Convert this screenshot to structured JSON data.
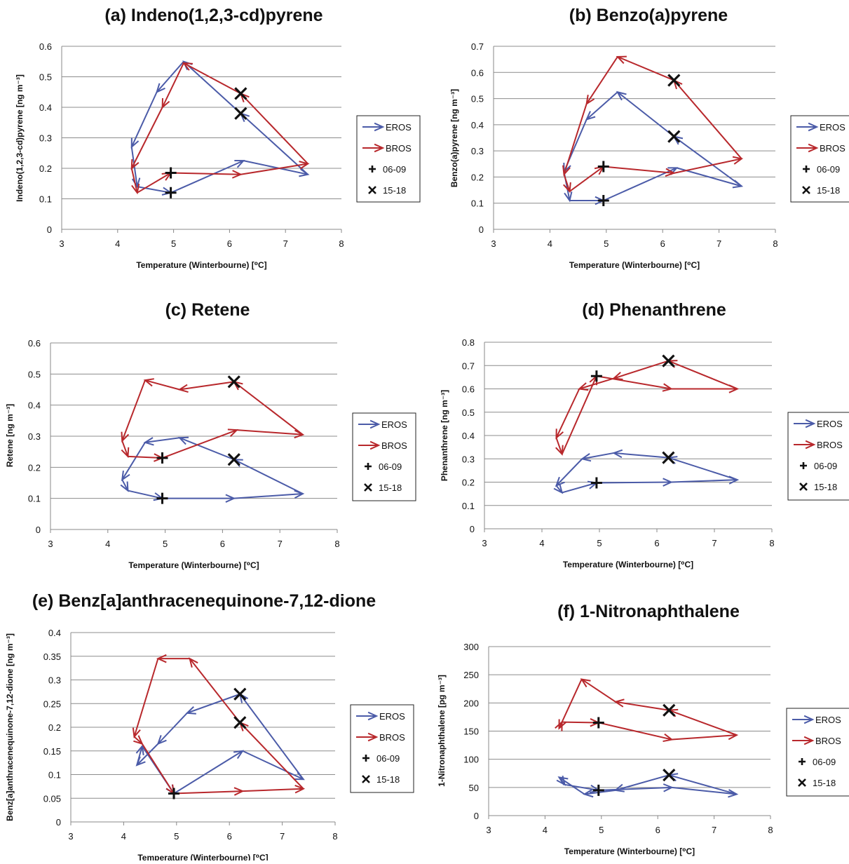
{
  "chart_data": [
    {
      "id": "a",
      "type": "line",
      "title": "(a) Indeno(1,2,3-cd)pyrene",
      "xlabel": "Temperature (Winterbourne) [⁰C]",
      "ylabel": "Indeno(1,2,3-cd)pyrene [ng m⁻³]",
      "xlim": [
        3,
        8
      ],
      "ylim": [
        0,
        0.6
      ],
      "xticks": [
        "3",
        "4",
        "5",
        "6",
        "7",
        "8"
      ],
      "yticks": [
        "0",
        "0.1",
        "0.2",
        "0.3",
        "0.4",
        "0.5",
        "0.6"
      ],
      "series": [
        {
          "name": "EROS",
          "x": [
            4.95,
            6.25,
            7.4,
            6.2,
            5.18,
            4.7,
            4.25,
            4.35,
            4.95
          ],
          "y": [
            0.12,
            0.225,
            0.18,
            0.38,
            0.55,
            0.45,
            0.27,
            0.14,
            0.12
          ]
        },
        {
          "name": "BROS",
          "x": [
            4.95,
            6.2,
            7.4,
            6.2,
            5.18,
            4.8,
            4.25,
            4.35,
            4.95
          ],
          "y": [
            0.185,
            0.18,
            0.215,
            0.445,
            0.545,
            0.4,
            0.2,
            0.12,
            0.185
          ]
        }
      ],
      "markers": [
        {
          "name": "06-09",
          "x": [
            4.95,
            4.95
          ],
          "y": [
            0.12,
            0.185
          ]
        },
        {
          "name": "15-18",
          "x": [
            6.2,
            6.2
          ],
          "y": [
            0.38,
            0.445
          ]
        }
      ],
      "legend": [
        "EROS",
        "BROS",
        "06-09",
        "15-18"
      ]
    },
    {
      "id": "b",
      "type": "line",
      "title": "(b) Benzo(a)pyrene",
      "xlabel": "Temperature (Winterbourne) [⁰C]",
      "ylabel": "Benzo(a)pyrene [ng m⁻³]",
      "xlim": [
        3,
        8
      ],
      "ylim": [
        0,
        0.7
      ],
      "xticks": [
        "3",
        "4",
        "5",
        "6",
        "7",
        "8"
      ],
      "yticks": [
        "0",
        "0.1",
        "0.2",
        "0.3",
        "0.4",
        "0.5",
        "0.6",
        "0.7"
      ],
      "series": [
        {
          "name": "EROS",
          "x": [
            4.95,
            6.25,
            7.4,
            6.2,
            5.2,
            4.65,
            4.25,
            4.35,
            4.95
          ],
          "y": [
            0.11,
            0.235,
            0.165,
            0.355,
            0.525,
            0.42,
            0.22,
            0.11,
            0.11
          ]
        },
        {
          "name": "BROS",
          "x": [
            4.95,
            6.2,
            7.4,
            6.2,
            5.2,
            4.65,
            4.25,
            4.35,
            4.95
          ],
          "y": [
            0.24,
            0.215,
            0.27,
            0.57,
            0.66,
            0.48,
            0.21,
            0.145,
            0.24
          ]
        }
      ],
      "markers": [
        {
          "name": "06-09",
          "x": [
            4.95,
            4.95
          ],
          "y": [
            0.11,
            0.24
          ]
        },
        {
          "name": "15-18",
          "x": [
            6.2,
            6.2
          ],
          "y": [
            0.355,
            0.57
          ]
        }
      ],
      "legend": [
        "EROS",
        "BROS",
        "06-09",
        "15-18"
      ]
    },
    {
      "id": "c",
      "type": "line",
      "title": "(c) Retene",
      "xlabel": "Temperature (Winterbourne) [⁰C]",
      "ylabel": "Retene [ng m⁻³]",
      "xlim": [
        3,
        8
      ],
      "ylim": [
        0,
        0.6
      ],
      "xticks": [
        "3",
        "4",
        "5",
        "6",
        "7",
        "8"
      ],
      "yticks": [
        "0",
        "0.1",
        "0.2",
        "0.3",
        "0.4",
        "0.5",
        "0.6"
      ],
      "series": [
        {
          "name": "EROS",
          "x": [
            4.95,
            6.2,
            7.4,
            6.2,
            5.25,
            4.65,
            4.25,
            4.35,
            4.95
          ],
          "y": [
            0.1,
            0.1,
            0.115,
            0.225,
            0.295,
            0.28,
            0.16,
            0.125,
            0.1
          ]
        },
        {
          "name": "BROS",
          "x": [
            4.95,
            6.25,
            7.4,
            6.2,
            5.25,
            4.65,
            4.25,
            4.35,
            4.95
          ],
          "y": [
            0.23,
            0.32,
            0.305,
            0.475,
            0.45,
            0.48,
            0.285,
            0.235,
            0.23
          ]
        }
      ],
      "markers": [
        {
          "name": "06-09",
          "x": [
            4.95,
            4.95
          ],
          "y": [
            0.1,
            0.23
          ]
        },
        {
          "name": "15-18",
          "x": [
            6.2,
            6.2
          ],
          "y": [
            0.225,
            0.475
          ]
        }
      ],
      "legend": [
        "EROS",
        "BROS",
        "06-09",
        "15-18"
      ]
    },
    {
      "id": "d",
      "type": "line",
      "title": "(d) Phenanthrene",
      "xlabel": "Temperature (Winterbourne) [⁰C]",
      "ylabel": "Phenanthrene [ng m⁻³]",
      "xlim": [
        3,
        8
      ],
      "ylim": [
        0,
        0.8
      ],
      "xticks": [
        "3",
        "4",
        "5",
        "6",
        "7",
        "8"
      ],
      "yticks": [
        "0",
        "0.1",
        "0.2",
        "0.3",
        "0.4",
        "0.5",
        "0.6",
        "0.7",
        "0.8"
      ],
      "series": [
        {
          "name": "EROS",
          "x": [
            4.95,
            6.25,
            7.4,
            6.2,
            5.25,
            4.7,
            4.25,
            4.35,
            4.95
          ],
          "y": [
            0.197,
            0.2,
            0.21,
            0.305,
            0.325,
            0.3,
            0.185,
            0.155,
            0.197
          ]
        },
        {
          "name": "BROS",
          "x": [
            4.95,
            6.25,
            7.4,
            6.2,
            5.25,
            4.65,
            4.25,
            4.35,
            4.95
          ],
          "y": [
            0.655,
            0.6,
            0.6,
            0.72,
            0.645,
            0.6,
            0.39,
            0.32,
            0.655
          ]
        }
      ],
      "markers": [
        {
          "name": "06-09",
          "x": [
            4.95,
            4.95
          ],
          "y": [
            0.197,
            0.655
          ]
        },
        {
          "name": "15-18",
          "x": [
            6.2,
            6.2
          ],
          "y": [
            0.305,
            0.72
          ]
        }
      ],
      "legend": [
        "EROS",
        "BROS",
        "06-09",
        "15-18"
      ]
    },
    {
      "id": "e",
      "type": "line",
      "title": "(e) Benz[a]anthracenequinone-7,12-dione",
      "xlabel": "Temperature (Winterbourne) [⁰C]",
      "ylabel": "Benz[a]anthracenequinone-7,12-dione [ng m⁻³]",
      "xlim": [
        3,
        8
      ],
      "ylim": [
        0,
        0.4
      ],
      "xticks": [
        "3",
        "4",
        "5",
        "6",
        "7",
        "8"
      ],
      "yticks": [
        "0",
        "0.05",
        "0.1",
        "0.15",
        "0.2",
        "0.25",
        "0.3",
        "0.35",
        "0.4"
      ],
      "series": [
        {
          "name": "EROS",
          "x": [
            4.95,
            6.25,
            7.4,
            6.2,
            5.2,
            4.65,
            4.25,
            4.35,
            4.95
          ],
          "y": [
            0.06,
            0.15,
            0.09,
            0.27,
            0.23,
            0.165,
            0.12,
            0.16,
            0.06
          ]
        },
        {
          "name": "BROS",
          "x": [
            4.95,
            6.25,
            7.4,
            6.2,
            5.25,
            4.65,
            4.2,
            4.35,
            4.95
          ],
          "y": [
            0.06,
            0.065,
            0.07,
            0.21,
            0.345,
            0.345,
            0.18,
            0.165,
            0.06
          ]
        }
      ],
      "markers": [
        {
          "name": "06-09",
          "x": [
            4.95,
            4.95
          ],
          "y": [
            0.06,
            0.06
          ]
        },
        {
          "name": "15-18",
          "x": [
            6.2,
            6.2
          ],
          "y": [
            0.27,
            0.21
          ]
        }
      ],
      "legend": [
        "EROS",
        "BROS",
        "06-09",
        "15-18"
      ]
    },
    {
      "id": "f",
      "type": "line",
      "title": "(f) 1-Nitronaphthalene",
      "xlabel": "Temperature (Winterbourne) [⁰C]",
      "ylabel": "1-Nitronaphthalene  [pg m⁻³]",
      "xlim": [
        3,
        8
      ],
      "ylim": [
        0,
        300
      ],
      "xticks": [
        "3",
        "4",
        "5",
        "6",
        "7",
        "8"
      ],
      "yticks": [
        "0",
        "50",
        "100",
        "150",
        "200",
        "250",
        "300"
      ],
      "series": [
        {
          "name": "EROS",
          "x": [
            4.95,
            6.25,
            7.4,
            6.2,
            5.25,
            4.7,
            4.25,
            4.35,
            4.95
          ],
          "y": [
            45,
            50,
            38,
            72,
            45,
            38,
            68,
            55,
            45
          ]
        },
        {
          "name": "BROS",
          "x": [
            4.95,
            6.25,
            7.4,
            6.2,
            5.25,
            4.65,
            4.25,
            4.3,
            4.95
          ],
          "y": [
            165,
            135,
            143,
            187,
            202,
            242,
            155,
            166,
            165
          ]
        }
      ],
      "markers": [
        {
          "name": "06-09",
          "x": [
            4.95,
            4.95
          ],
          "y": [
            45,
            165
          ]
        },
        {
          "name": "15-18",
          "x": [
            6.2,
            6.2
          ],
          "y": [
            72,
            187
          ]
        }
      ],
      "legend": [
        "EROS",
        "BROS",
        "06-09",
        "15-18"
      ]
    }
  ],
  "colors": {
    "EROS": "#4b5ba8",
    "BROS": "#b8282c",
    "grid": "#8c8c8c",
    "axis": "#888888"
  }
}
